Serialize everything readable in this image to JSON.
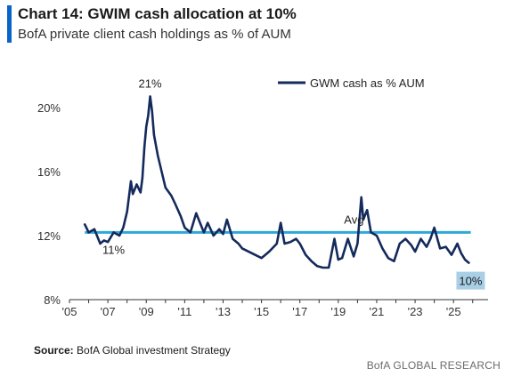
{
  "header": {
    "title": "Chart 14: GWIM cash allocation at 10%",
    "subtitle": "BofA private client cash holdings as % of AUM"
  },
  "footer": {
    "source_label": "Source:",
    "source_text": "BofA Global investment Strategy",
    "brand": "BofA GLOBAL RESEARCH"
  },
  "colors": {
    "series": "#142a5c",
    "avg": "#2ea8d8",
    "badge_bg": "#a9cfe6"
  },
  "chart_data": {
    "type": "line",
    "title": "Chart 14: GWIM cash allocation at 10%",
    "subtitle": "BofA private client cash holdings as % of AUM",
    "xlabel": "",
    "ylabel": "",
    "xlim": [
      2005,
      2026.8
    ],
    "ylim": [
      8,
      22
    ],
    "x_ticks": [
      "'05",
      "'07",
      "'09",
      "'11",
      "'13",
      "'15",
      "'17",
      "'19",
      "'21",
      "'23",
      "'25"
    ],
    "x_tick_values": [
      2005,
      2007,
      2009,
      2011,
      2013,
      2015,
      2017,
      2019,
      2021,
      2023,
      2025
    ],
    "y_ticks": [
      "8%",
      "12%",
      "16%",
      "20%"
    ],
    "y_tick_values": [
      8,
      12,
      16,
      20
    ],
    "grid": false,
    "legend": "top-right",
    "series": [
      {
        "name": "GWM cash as % AUM",
        "x": [
          2005.8,
          2006.0,
          2006.3,
          2006.6,
          2006.8,
          2007.0,
          2007.3,
          2007.6,
          2007.8,
          2008.0,
          2008.2,
          2008.3,
          2008.5,
          2008.7,
          2008.8,
          2008.9,
          2009.0,
          2009.1,
          2009.2,
          2009.3,
          2009.4,
          2009.6,
          2009.8,
          2010.0,
          2010.3,
          2010.5,
          2010.8,
          2011.0,
          2011.3,
          2011.6,
          2011.8,
          2012.0,
          2012.2,
          2012.5,
          2012.8,
          2013.0,
          2013.2,
          2013.5,
          2013.8,
          2014.0,
          2014.5,
          2015.0,
          2015.4,
          2015.8,
          2016.0,
          2016.2,
          2016.5,
          2016.8,
          2017.0,
          2017.3,
          2017.6,
          2017.9,
          2018.2,
          2018.5,
          2018.8,
          2019.0,
          2019.2,
          2019.5,
          2019.8,
          2020.0,
          2020.2,
          2020.3,
          2020.5,
          2020.7,
          2021.0,
          2021.3,
          2021.6,
          2021.9,
          2022.2,
          2022.5,
          2022.8,
          2023.0,
          2023.3,
          2023.6,
          2023.8,
          2024.0,
          2024.3,
          2024.6,
          2024.9,
          2025.2,
          2025.4,
          2025.6,
          2025.8
        ],
        "values": [
          12.7,
          12.2,
          12.4,
          11.5,
          11.7,
          11.6,
          12.2,
          12.0,
          12.5,
          13.5,
          15.4,
          14.6,
          15.2,
          14.7,
          15.6,
          17.5,
          18.8,
          19.5,
          20.7,
          19.8,
          18.3,
          17.0,
          16.0,
          15.0,
          14.5,
          14.0,
          13.2,
          12.5,
          12.2,
          13.4,
          12.8,
          12.2,
          12.8,
          12.0,
          12.4,
          12.1,
          13.0,
          11.8,
          11.5,
          11.2,
          10.9,
          10.6,
          11.0,
          11.5,
          12.8,
          11.5,
          11.6,
          11.8,
          11.5,
          10.8,
          10.4,
          10.1,
          10.0,
          10.0,
          11.8,
          10.5,
          10.6,
          11.8,
          10.7,
          11.5,
          14.4,
          13.0,
          13.6,
          12.2,
          12.0,
          11.2,
          10.6,
          10.4,
          11.5,
          11.8,
          11.4,
          11.0,
          11.8,
          11.3,
          11.8,
          12.5,
          11.2,
          11.3,
          10.8,
          11.5,
          10.9,
          10.5,
          10.3
        ]
      }
    ],
    "avg": {
      "label": "Avg",
      "value": 12.2
    },
    "annotations": {
      "peak_label": "21%",
      "trough_label": "11%",
      "last_label": "10%"
    }
  }
}
